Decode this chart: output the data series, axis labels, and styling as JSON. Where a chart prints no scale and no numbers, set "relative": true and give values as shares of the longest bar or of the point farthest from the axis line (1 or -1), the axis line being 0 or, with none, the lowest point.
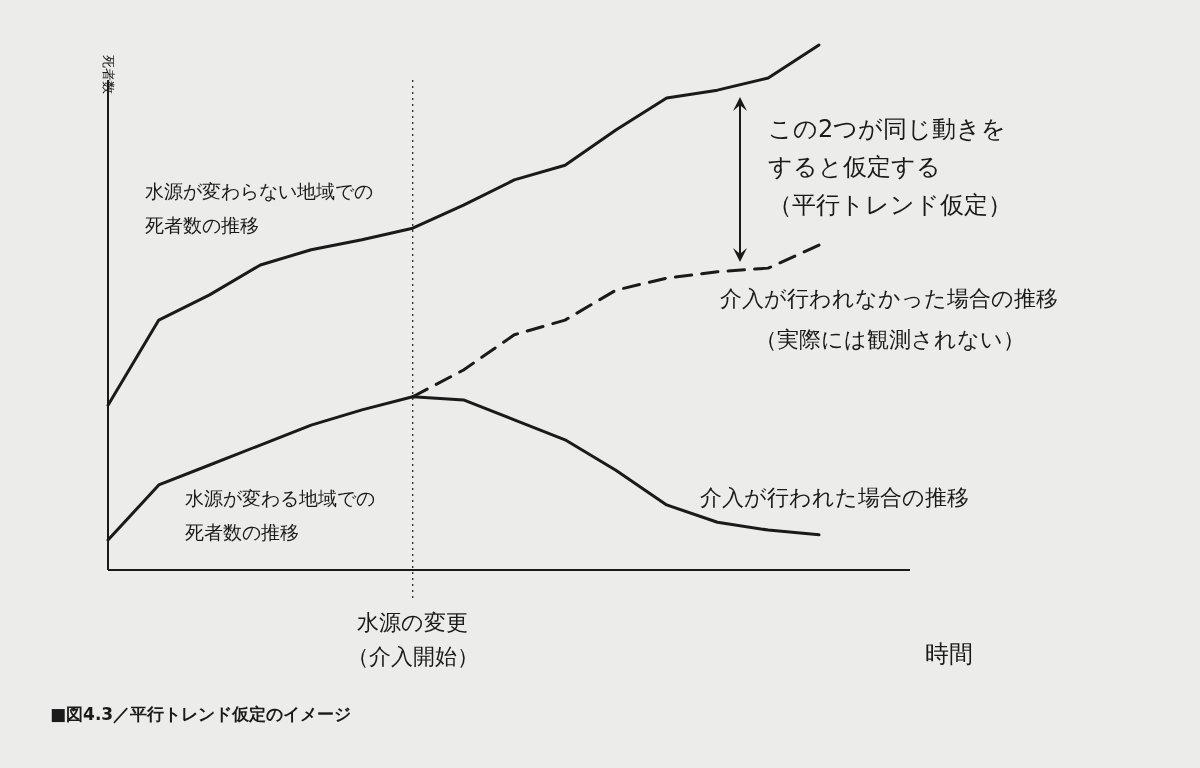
{
  "chart_data": {
    "type": "line",
    "relative": true,
    "title": "■図4.3／平行トレンド仮定のイメージ",
    "ylabel": "死者数",
    "xlabel": "時間",
    "categories": [
      null,
      null,
      null,
      null,
      null,
      null,
      null,
      null,
      null,
      null,
      null,
      null,
      null,
      null,
      null
    ],
    "marker": "none",
    "series": [
      {
        "name": "水源が変わらない地域での死者数の推移",
        "color": "#1a1a1a",
        "line_style": "solid",
        "values": [
          0.314,
          0.476,
          0.524,
          0.581,
          0.61,
          0.629,
          0.651,
          0.695,
          0.743,
          0.771,
          0.838,
          0.899,
          0.914,
          0.937,
          1.0
        ]
      },
      {
        "name": "水源が変わる地域での死者数の推移",
        "color": "#1a1a1a",
        "line_style": "solid",
        "values": [
          0.057,
          0.162,
          0.2,
          0.238,
          0.276,
          0.305,
          0.33,
          0.324,
          0.286,
          0.248,
          0.19,
          0.124,
          0.091,
          0.076,
          0.067
        ]
      },
      {
        "name": "介入が行われなかった場合の推移",
        "color": "#1a1a1a",
        "line_style": "dashed",
        "values": [
          null,
          null,
          null,
          null,
          null,
          null,
          0.33,
          0.381,
          0.448,
          0.476,
          0.533,
          0.556,
          0.568,
          0.575,
          0.619
        ]
      }
    ],
    "ref_lines": [
      {
        "axis": "x",
        "label": "水源の変更（介入開始）",
        "line_style": "dotted",
        "color": "#1a1a1a"
      }
    ],
    "annotations": [
      "この2つが同じ動きをすると仮定する（平行トレンド仮定）",
      "（実際には観測されない）",
      "介入が行われた場合の推移"
    ]
  }
}
